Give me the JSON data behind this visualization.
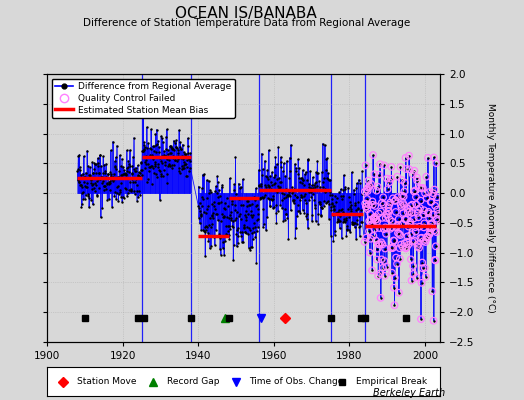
{
  "title": "OCEAN IS/BANABA",
  "subtitle": "Difference of Station Temperature Data from Regional Average",
  "ylabel": "Monthly Temperature Anomaly Difference (°C)",
  "xlabel_credit": "Berkeley Earth",
  "xlim": [
    1900,
    2004
  ],
  "ylim": [
    -2.5,
    2.0
  ],
  "yticks": [
    -2.5,
    -2.0,
    -1.5,
    -1.0,
    -0.5,
    0.0,
    0.5,
    1.0,
    1.5,
    2.0
  ],
  "xticks": [
    1900,
    1920,
    1940,
    1960,
    1980,
    2000
  ],
  "bg_color": "#d8d8d8",
  "plot_bg_color": "#d8d8d8",
  "bias_segments": [
    {
      "x_start": 1908.0,
      "x_end": 1925.0,
      "bias": 0.25
    },
    {
      "x_start": 1925.0,
      "x_end": 1938.0,
      "bias": 0.6
    },
    {
      "x_start": 1940.0,
      "x_end": 1948.0,
      "bias": -0.72
    },
    {
      "x_start": 1948.0,
      "x_end": 1956.0,
      "bias": -0.08
    },
    {
      "x_start": 1956.0,
      "x_end": 1975.0,
      "bias": 0.05
    },
    {
      "x_start": 1975.0,
      "x_end": 1983.5,
      "bias": -0.35
    },
    {
      "x_start": 1984.0,
      "x_end": 2003.0,
      "bias": -0.55
    }
  ],
  "vertical_lines": [
    1925.0,
    1938.0,
    1956.0,
    1975.0,
    1984.0
  ],
  "station_moves": [
    1963.0
  ],
  "record_gaps": [
    1947.0
  ],
  "obs_changes": [
    1956.5
  ],
  "empirical_breaks": [
    1910.0,
    1924.0,
    1925.5,
    1938.0,
    1948.0,
    1975.0,
    1983.0,
    1984.0,
    1995.0
  ],
  "qc_start": 1984.0,
  "qc_end": 2003.5,
  "data_segments": [
    {
      "x_start": 1908.0,
      "x_end": 1925.0,
      "mean": 0.25,
      "std": 0.25
    },
    {
      "x_start": 1925.0,
      "x_end": 1938.0,
      "mean": 0.6,
      "std": 0.22
    },
    {
      "x_start": 1940.0,
      "x_end": 1956.0,
      "mean": -0.38,
      "std": 0.32
    },
    {
      "x_start": 1956.0,
      "x_end": 1975.0,
      "mean": 0.04,
      "std": 0.3
    },
    {
      "x_start": 1975.0,
      "x_end": 1983.5,
      "mean": -0.34,
      "std": 0.28
    },
    {
      "x_start": 1984.0,
      "x_end": 2003.5,
      "mean": -0.55,
      "std": 0.55
    }
  ]
}
